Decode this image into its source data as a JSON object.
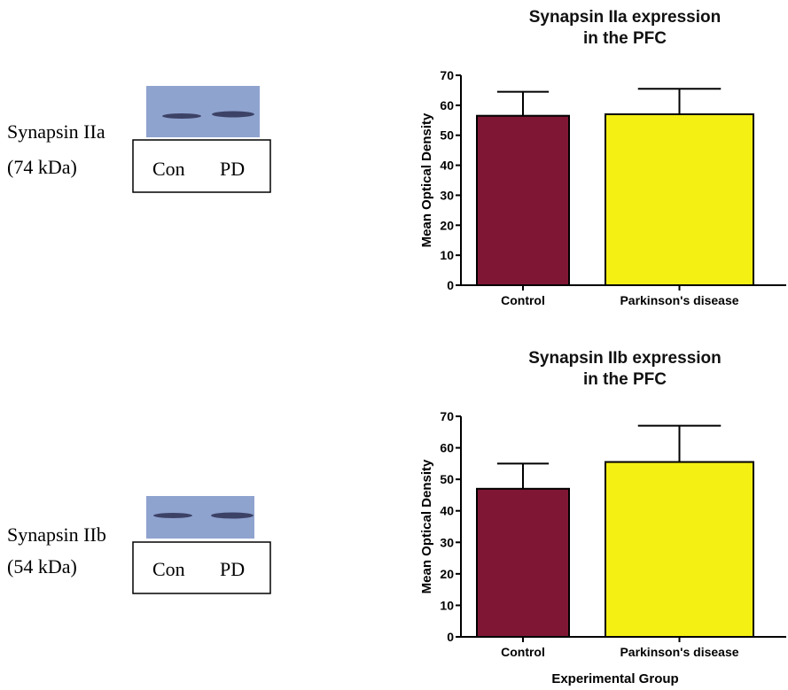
{
  "chart_data": [
    {
      "type": "bar",
      "title": [
        "Synapsin IIa expression",
        "in the PFC"
      ],
      "ylabel": "Mean Optical Density",
      "categories": [
        "Control",
        "Parkinson's disease"
      ],
      "values": [
        56.5,
        57
      ],
      "errors": [
        8,
        8.5
      ],
      "colors": [
        "#7f1734",
        "#f5f014"
      ],
      "ylim": [
        0,
        70
      ],
      "yticks": [
        0,
        10,
        20,
        30,
        40,
        50,
        60,
        70
      ]
    },
    {
      "type": "bar",
      "title": [
        "Synapsin IIb expression",
        "in the PFC"
      ],
      "ylabel": "Mean Optical Density",
      "xlabel": "Experimental Group",
      "categories": [
        "Control",
        "Parkinson's disease"
      ],
      "values": [
        47,
        55.5
      ],
      "errors": [
        8,
        11.5
      ],
      "colors": [
        "#7f1734",
        "#f5f014"
      ],
      "ylim": [
        0,
        70
      ],
      "yticks": [
        0,
        10,
        20,
        30,
        40,
        50,
        60,
        70
      ]
    }
  ],
  "blots": [
    {
      "name": "Synapsin IIa",
      "size": "(74 kDa)",
      "lanes": [
        "Con",
        "PD"
      ]
    },
    {
      "name": "Synapsin IIb",
      "size": "(54 kDa)",
      "lanes": [
        "Con",
        "PD"
      ]
    }
  ]
}
